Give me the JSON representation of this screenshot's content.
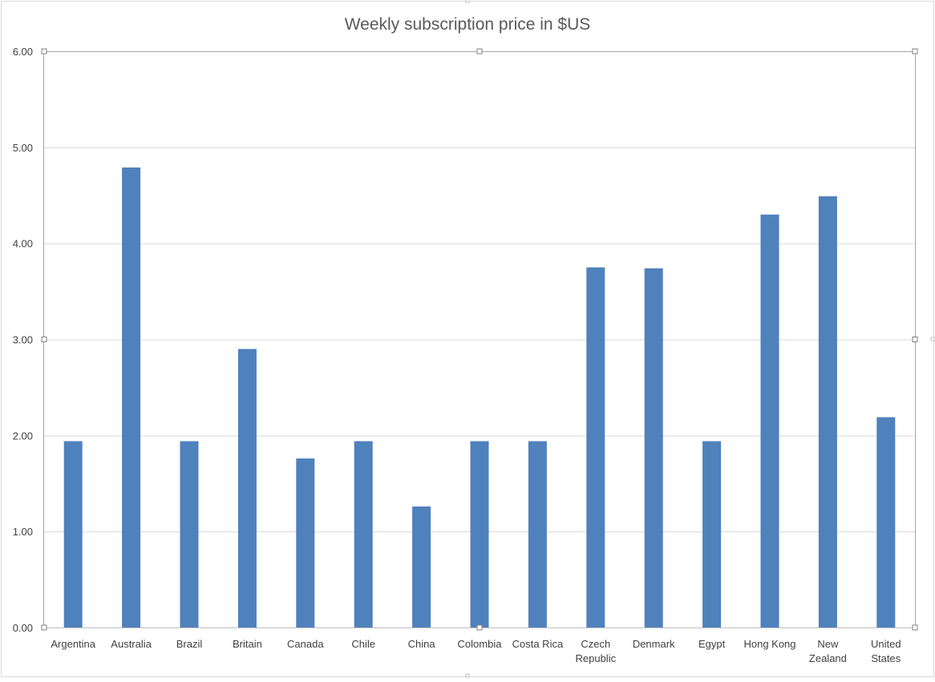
{
  "chart_data": {
    "type": "bar",
    "title": "Weekly subscription price in $US",
    "xlabel": "",
    "ylabel": "",
    "categories": [
      [
        "Argentina"
      ],
      [
        "Australia"
      ],
      [
        "Brazil"
      ],
      [
        "Britain"
      ],
      [
        "Canada"
      ],
      [
        "Chile"
      ],
      [
        "China"
      ],
      [
        "Colombia"
      ],
      [
        "Costa Rica"
      ],
      [
        "Czech",
        "Republic"
      ],
      [
        "Denmark"
      ],
      [
        "Egypt"
      ],
      [
        "Hong Kong"
      ],
      [
        "New",
        "Zealand"
      ],
      [
        "United",
        "States"
      ]
    ],
    "values": [
      1.94,
      4.79,
      1.94,
      2.9,
      1.76,
      1.94,
      1.26,
      1.94,
      1.94,
      3.75,
      3.74,
      1.94,
      4.3,
      4.49,
      2.19
    ],
    "ylim": [
      0,
      6
    ],
    "yticks": [
      "0.00",
      "1.00",
      "2.00",
      "3.00",
      "4.00",
      "5.00",
      "6.00"
    ],
    "grid": true,
    "legend": "none",
    "bar_color": "#4f81bd",
    "grid_color": "#d9d9d9",
    "axis_color": "#bfbfbf"
  }
}
